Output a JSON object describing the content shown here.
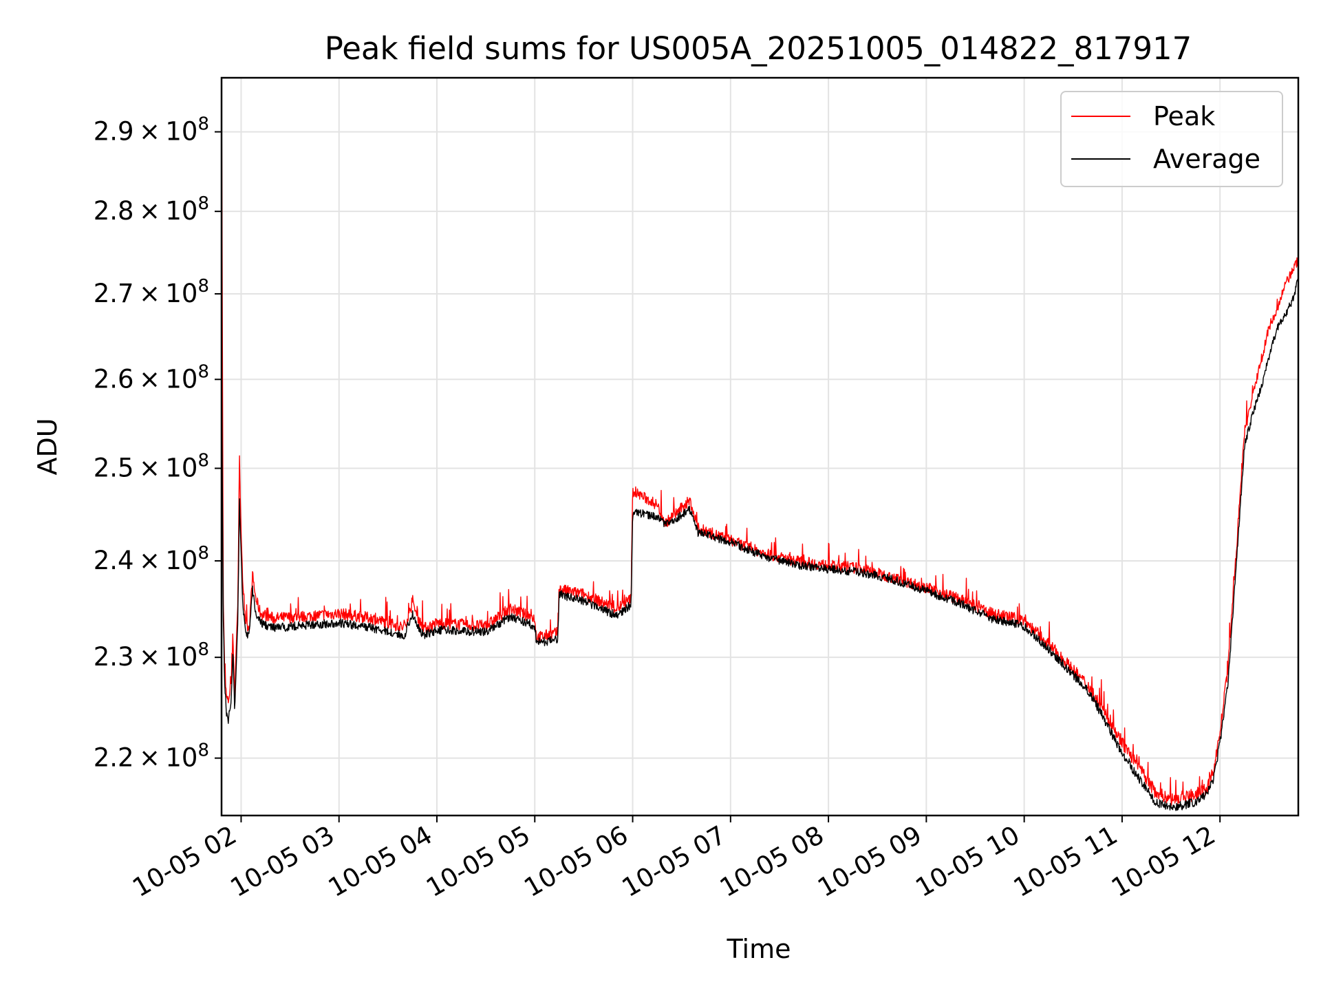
{
  "chart_data": {
    "type": "line",
    "title": "Peak field sums for US005A_20251005_014822_817917",
    "xlabel": "Time",
    "ylabel": "ADU",
    "xlim": [
      "2025-10-05 01:48",
      "2025-10-05 12:48"
    ],
    "ylim": [
      214500000,
      297000000
    ],
    "y_scale": "log",
    "grid": true,
    "legend_position": "upper right",
    "x_ticks": [
      {
        "value": "2025-10-05 02:00",
        "label": "10-05 02"
      },
      {
        "value": "2025-10-05 03:00",
        "label": "10-05 03"
      },
      {
        "value": "2025-10-05 04:00",
        "label": "10-05 04"
      },
      {
        "value": "2025-10-05 05:00",
        "label": "10-05 05"
      },
      {
        "value": "2025-10-05 06:00",
        "label": "10-05 06"
      },
      {
        "value": "2025-10-05 07:00",
        "label": "10-05 07"
      },
      {
        "value": "2025-10-05 08:00",
        "label": "10-05 08"
      },
      {
        "value": "2025-10-05 09:00",
        "label": "10-05 09"
      },
      {
        "value": "2025-10-05 10:00",
        "label": "10-05 10"
      },
      {
        "value": "2025-10-05 11:00",
        "label": "10-05 11"
      },
      {
        "value": "2025-10-05 12:00",
        "label": "10-05 12"
      }
    ],
    "y_ticks": [
      {
        "value": 220000000,
        "mantissa": "2.2",
        "exponent": "8"
      },
      {
        "value": 230000000,
        "mantissa": "2.3",
        "exponent": "8"
      },
      {
        "value": 240000000,
        "mantissa": "2.4",
        "exponent": "8"
      },
      {
        "value": 250000000,
        "mantissa": "2.5",
        "exponent": "8"
      },
      {
        "value": 260000000,
        "mantissa": "2.6",
        "exponent": "8"
      },
      {
        "value": 270000000,
        "mantissa": "2.7",
        "exponent": "8"
      },
      {
        "value": 280000000,
        "mantissa": "2.8",
        "exponent": "8"
      },
      {
        "value": 290000000,
        "mantissa": "2.9",
        "exponent": "8"
      }
    ],
    "series": [
      {
        "name": "Peak",
        "color": "#ff0000",
        "x": [
          "2025-10-05 01:48",
          "2025-10-05 01:49",
          "2025-10-05 01:50",
          "2025-10-05 01:51",
          "2025-10-05 01:52",
          "2025-10-05 01:54",
          "2025-10-05 01:55",
          "2025-10-05 01:56",
          "2025-10-05 01:58",
          "2025-10-05 01:59",
          "2025-10-05 02:00",
          "2025-10-05 02:01",
          "2025-10-05 02:03",
          "2025-10-05 02:05",
          "2025-10-05 02:07",
          "2025-10-05 02:09",
          "2025-10-05 02:12",
          "2025-10-05 02:20",
          "2025-10-05 02:40",
          "2025-10-05 03:00",
          "2025-10-05 03:20",
          "2025-10-05 03:40",
          "2025-10-05 03:45",
          "2025-10-05 03:50",
          "2025-10-05 03:53",
          "2025-10-05 04:00",
          "2025-10-05 04:30",
          "2025-10-05 04:45",
          "2025-10-05 05:00",
          "2025-10-05 05:01",
          "2025-10-05 05:14",
          "2025-10-05 05:15",
          "2025-10-05 05:30",
          "2025-10-05 05:50",
          "2025-10-05 05:59",
          "2025-10-05 06:00",
          "2025-10-05 06:15",
          "2025-10-05 06:20",
          "2025-10-05 06:35",
          "2025-10-05 06:40",
          "2025-10-05 07:00",
          "2025-10-05 07:20",
          "2025-10-05 07:40",
          "2025-10-05 08:00",
          "2025-10-05 08:20",
          "2025-10-05 08:40",
          "2025-10-05 09:00",
          "2025-10-05 09:20",
          "2025-10-05 09:40",
          "2025-10-05 10:00",
          "2025-10-05 10:20",
          "2025-10-05 10:40",
          "2025-10-05 11:00",
          "2025-10-05 11:20",
          "2025-10-05 11:30",
          "2025-10-05 11:45",
          "2025-10-05 11:52",
          "2025-10-05 11:56",
          "2025-10-05 12:00",
          "2025-10-05 12:05",
          "2025-10-05 12:10",
          "2025-10-05 12:15",
          "2025-10-05 12:20",
          "2025-10-05 12:25",
          "2025-10-05 12:30",
          "2025-10-05 12:35",
          "2025-10-05 12:40",
          "2025-10-05 12:45",
          "2025-10-05 12:48"
        ],
        "y": [
          297000000,
          236000000,
          228000000,
          226000000,
          225500000,
          227500000,
          232500000,
          226000000,
          236000000,
          251000000,
          243500000,
          237000000,
          233500000,
          233000000,
          238500000,
          236000000,
          234500000,
          234000000,
          234200000,
          234500000,
          234000000,
          233000000,
          235500000,
          233500000,
          233000000,
          233500000,
          233200000,
          235000000,
          234000000,
          232000000,
          232500000,
          237000000,
          236500000,
          235000000,
          236000000,
          247500000,
          246000000,
          244000000,
          246500000,
          243500000,
          242200000,
          240800000,
          240000000,
          239500000,
          239200000,
          238200000,
          237200000,
          236000000,
          234500000,
          233800000,
          230500000,
          227000000,
          221500000,
          216800000,
          216000000,
          216500000,
          217000000,
          218800000,
          222500000,
          229000000,
          241000000,
          254000000,
          258000000,
          262000000,
          266000000,
          268000000,
          271000000,
          273000000,
          274000000
        ],
        "noise": 600000
      },
      {
        "name": "Average",
        "color": "#000000",
        "x": [
          "2025-10-05 01:48",
          "2025-10-05 01:49",
          "2025-10-05 01:50",
          "2025-10-05 01:51",
          "2025-10-05 01:52",
          "2025-10-05 01:54",
          "2025-10-05 01:55",
          "2025-10-05 01:56",
          "2025-10-05 01:58",
          "2025-10-05 01:59",
          "2025-10-05 02:00",
          "2025-10-05 02:01",
          "2025-10-05 02:03",
          "2025-10-05 02:05",
          "2025-10-05 02:07",
          "2025-10-05 02:09",
          "2025-10-05 02:12",
          "2025-10-05 02:20",
          "2025-10-05 02:40",
          "2025-10-05 03:00",
          "2025-10-05 03:20",
          "2025-10-05 03:40",
          "2025-10-05 03:45",
          "2025-10-05 03:50",
          "2025-10-05 03:53",
          "2025-10-05 04:00",
          "2025-10-05 04:30",
          "2025-10-05 04:45",
          "2025-10-05 05:00",
          "2025-10-05 05:01",
          "2025-10-05 05:14",
          "2025-10-05 05:15",
          "2025-10-05 05:30",
          "2025-10-05 05:50",
          "2025-10-05 05:59",
          "2025-10-05 06:00",
          "2025-10-05 06:15",
          "2025-10-05 06:20",
          "2025-10-05 06:35",
          "2025-10-05 06:40",
          "2025-10-05 07:00",
          "2025-10-05 07:20",
          "2025-10-05 07:40",
          "2025-10-05 08:00",
          "2025-10-05 08:20",
          "2025-10-05 08:40",
          "2025-10-05 09:00",
          "2025-10-05 09:20",
          "2025-10-05 09:40",
          "2025-10-05 10:00",
          "2025-10-05 10:20",
          "2025-10-05 10:40",
          "2025-10-05 11:00",
          "2025-10-05 11:20",
          "2025-10-05 11:30",
          "2025-10-05 11:45",
          "2025-10-05 11:52",
          "2025-10-05 11:56",
          "2025-10-05 12:00",
          "2025-10-05 12:05",
          "2025-10-05 12:10",
          "2025-10-05 12:15",
          "2025-10-05 12:20",
          "2025-10-05 12:25",
          "2025-10-05 12:30",
          "2025-10-05 12:35",
          "2025-10-05 12:40",
          "2025-10-05 12:45",
          "2025-10-05 12:48"
        ],
        "y": [
          262500000,
          234500000,
          227000000,
          224500000,
          223500000,
          226000000,
          230500000,
          224500000,
          234000000,
          246500000,
          241000000,
          235500000,
          232000000,
          232500000,
          237000000,
          234500000,
          233500000,
          233000000,
          233300000,
          233500000,
          233000000,
          232200000,
          234500000,
          232500000,
          232300000,
          232800000,
          232600000,
          234200000,
          233200000,
          231500000,
          231800000,
          236500000,
          235800000,
          234300000,
          235400000,
          245200000,
          244800000,
          243800000,
          245500000,
          243000000,
          242000000,
          240500000,
          239600000,
          239100000,
          238800000,
          238000000,
          236800000,
          235600000,
          234000000,
          233200000,
          230000000,
          226500000,
          220500000,
          215800000,
          215200000,
          215800000,
          216500000,
          218000000,
          221500000,
          227500000,
          239500000,
          252500000,
          256000000,
          259000000,
          262500000,
          266000000,
          267500000,
          269500000,
          272000000
        ],
        "noise": 450000
      }
    ]
  }
}
